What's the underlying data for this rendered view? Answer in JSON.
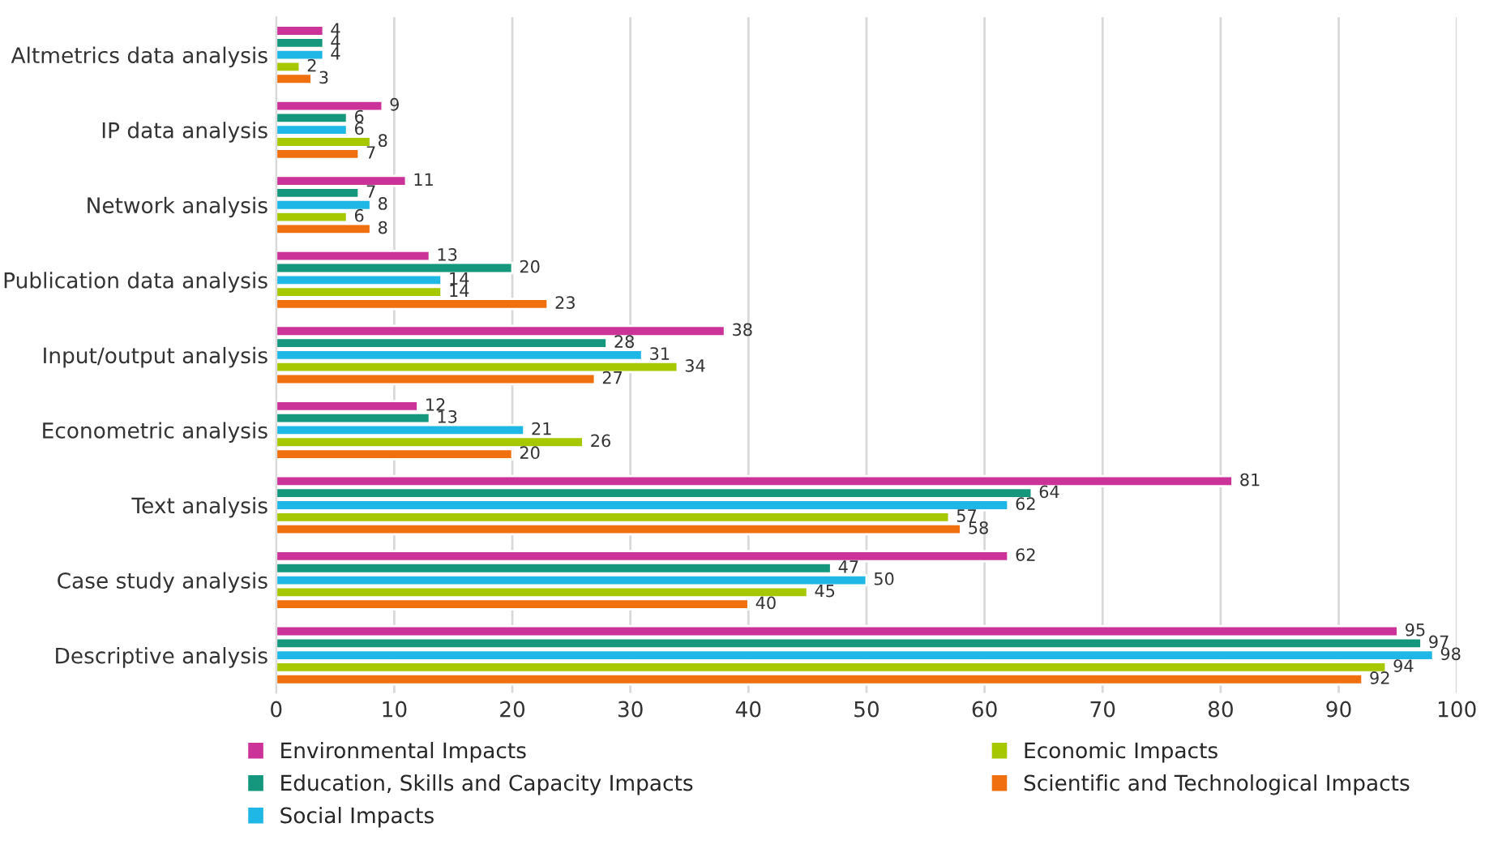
{
  "chart_data": {
    "type": "bar",
    "orientation": "horizontal",
    "categories": [
      "Altmetrics data analysis",
      "IP data analysis",
      "Network analysis",
      "Publication data analysis",
      "Input/output analysis",
      "Econometric analysis",
      "Text analysis",
      "Case study analysis",
      "Descriptive analysis"
    ],
    "series": [
      {
        "name": "Environmental Impacts",
        "color": "#cc3399",
        "values": [
          4,
          9,
          11,
          13,
          38,
          12,
          81,
          62,
          95
        ]
      },
      {
        "name": "Education, Skills and Capacity Impacts",
        "color": "#14977d",
        "values": [
          4,
          6,
          7,
          20,
          28,
          13,
          64,
          47,
          97
        ]
      },
      {
        "name": "Social Impacts",
        "color": "#1fb8e6",
        "values": [
          4,
          6,
          8,
          14,
          31,
          21,
          62,
          50,
          98
        ]
      },
      {
        "name": "Economic Impacts",
        "color": "#a5c800",
        "values": [
          2,
          8,
          6,
          14,
          34,
          26,
          57,
          45,
          94
        ]
      },
      {
        "name": "Scientific and Technological Impacts",
        "color": "#f07010",
        "values": [
          3,
          7,
          8,
          23,
          27,
          20,
          58,
          40,
          92
        ]
      }
    ],
    "xlim": [
      0,
      100
    ],
    "xticks": [
      0,
      10,
      20,
      30,
      40,
      50,
      60,
      70,
      80,
      90,
      100
    ],
    "grid": "x",
    "legend": "bottom",
    "data_labels": true
  }
}
